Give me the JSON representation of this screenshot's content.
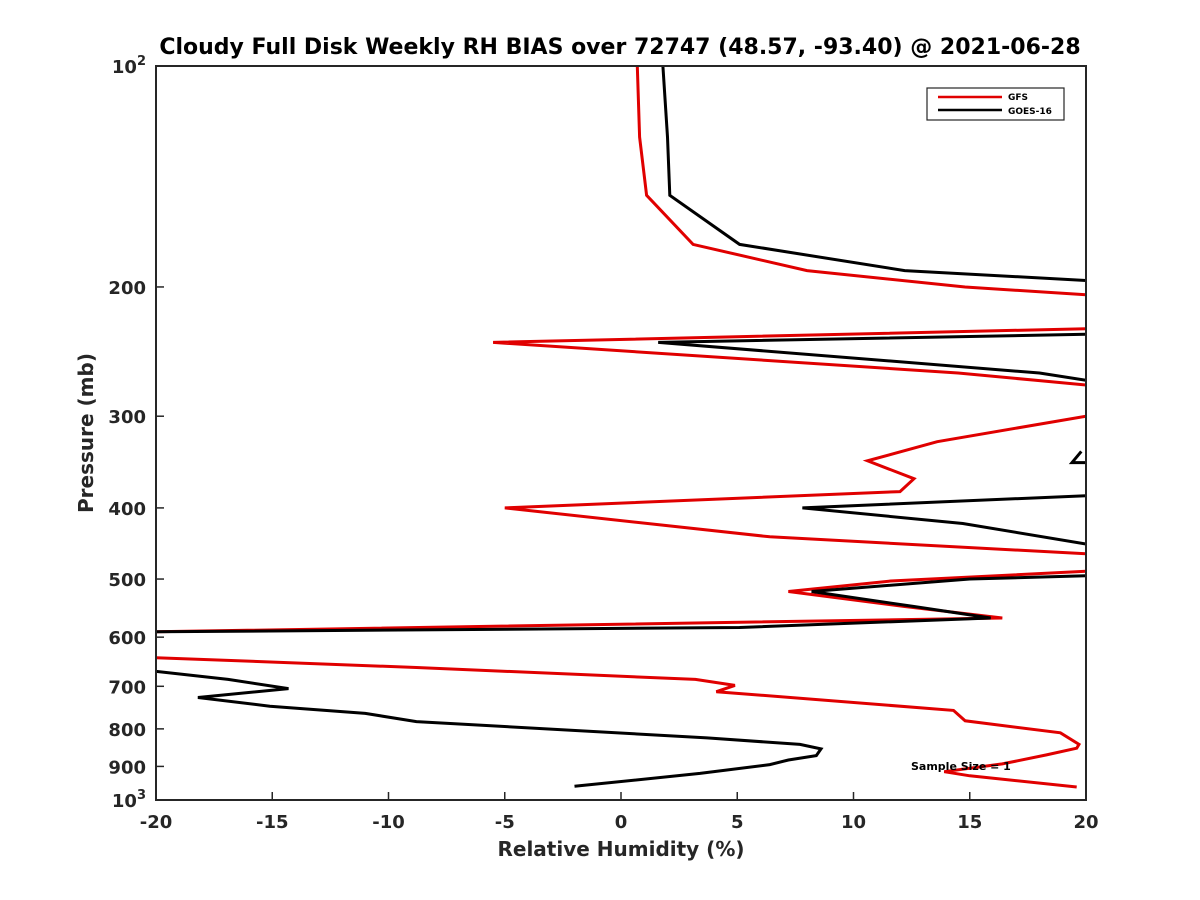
{
  "chart_data": {
    "type": "line",
    "title": "Cloudy Full Disk Weekly RH BIAS over 72747 (48.57, -93.40) @ 2021-06-28",
    "xlabel": "Relative Humidity (%)",
    "ylabel": "Pressure (mb)",
    "xlim": [
      -20,
      20
    ],
    "ylim": [
      100,
      1000
    ],
    "yscale": "log",
    "y_reversed": true,
    "grid": false,
    "x_ticks": [
      {
        "value": -20,
        "label": "-20"
      },
      {
        "value": -15,
        "label": "-15"
      },
      {
        "value": -10,
        "label": "-10"
      },
      {
        "value": -5,
        "label": "-5"
      },
      {
        "value": 0,
        "label": "0"
      },
      {
        "value": 5,
        "label": "5"
      },
      {
        "value": 10,
        "label": "10"
      },
      {
        "value": 15,
        "label": "15"
      },
      {
        "value": 20,
        "label": "20"
      }
    ],
    "y_ticks": [
      {
        "value": 100,
        "base": "10",
        "exp": "2"
      },
      {
        "value": 200,
        "base": "200",
        "exp": ""
      },
      {
        "value": 300,
        "base": "300",
        "exp": ""
      },
      {
        "value": 400,
        "base": "400",
        "exp": ""
      },
      {
        "value": 500,
        "base": "500",
        "exp": ""
      },
      {
        "value": 600,
        "base": "600",
        "exp": ""
      },
      {
        "value": 700,
        "base": "700",
        "exp": ""
      },
      {
        "value": 800,
        "base": "800",
        "exp": ""
      },
      {
        "value": 900,
        "base": "900",
        "exp": ""
      },
      {
        "value": 1000,
        "base": "10",
        "exp": "3"
      }
    ],
    "legend_position": "top-right",
    "annotation": "Sample Size = 1",
    "series": [
      {
        "name": "GFS",
        "color": "#e00000",
        "points": [
          [
            0.7,
            100
          ],
          [
            0.8,
            125
          ],
          [
            1.1,
            150
          ],
          [
            3.1,
            175
          ],
          [
            8,
            190
          ],
          [
            14.8,
            200
          ],
          [
            20,
            205
          ],
          [
            null,
            null
          ],
          [
            20,
            228
          ],
          [
            -5.5,
            238
          ],
          [
            14.5,
            262
          ],
          [
            20,
            272
          ],
          [
            null,
            null
          ],
          [
            20,
            300
          ],
          [
            13.6,
            325
          ],
          [
            10.6,
            345
          ],
          [
            12.6,
            365
          ],
          [
            12.0,
            380
          ],
          [
            -5.0,
            400
          ],
          [
            6.4,
            438
          ],
          [
            20,
            462
          ],
          [
            null,
            null
          ],
          [
            20,
            488
          ],
          [
            11.6,
            503
          ],
          [
            7.2,
            520
          ],
          [
            12.2,
            545
          ],
          [
            16.4,
            565
          ],
          [
            -20,
            590
          ],
          [
            null,
            null
          ],
          [
            -20,
            640
          ],
          [
            -8.8,
            660
          ],
          [
            3.2,
            685
          ],
          [
            4.9,
            698
          ],
          [
            4.1,
            712
          ],
          [
            14.3,
            755
          ],
          [
            14.8,
            780
          ],
          [
            18.9,
            810
          ],
          [
            19.7,
            840
          ],
          [
            19.6,
            850
          ],
          [
            18.3,
            868
          ],
          [
            16.4,
            893
          ],
          [
            13.9,
            915
          ],
          [
            15.0,
            927
          ],
          [
            19.6,
            960
          ]
        ]
      },
      {
        "name": "GOES-16",
        "color": "#000000",
        "points": [
          [
            1.8,
            100
          ],
          [
            2.0,
            125
          ],
          [
            2.1,
            150
          ],
          [
            5.1,
            175
          ],
          [
            12.2,
            190
          ],
          [
            20,
            196
          ],
          [
            null,
            null
          ],
          [
            20,
            232
          ],
          [
            1.6,
            238
          ],
          [
            18.0,
            262
          ],
          [
            20,
            268
          ],
          [
            null,
            null
          ],
          [
            19.8,
            335
          ],
          [
            19.4,
            347
          ],
          [
            20,
            347
          ],
          [
            null,
            null
          ],
          [
            20,
            385
          ],
          [
            7.8,
            400
          ],
          [
            14.7,
            420
          ],
          [
            20,
            448
          ],
          [
            null,
            null
          ],
          [
            20,
            495
          ],
          [
            15.0,
            500
          ],
          [
            8.2,
            520
          ],
          [
            12.6,
            545
          ],
          [
            15.9,
            565
          ],
          [
            5.1,
            582
          ],
          [
            -20,
            590
          ],
          [
            null,
            null
          ],
          [
            -20,
            668
          ],
          [
            -16.9,
            685
          ],
          [
            -14.3,
            705
          ],
          [
            -18.2,
            725
          ],
          [
            -15.1,
            745
          ],
          [
            -11.0,
            762
          ],
          [
            -8.8,
            782
          ],
          [
            3.7,
            823
          ],
          [
            7.7,
            840
          ],
          [
            8.6,
            852
          ],
          [
            8.4,
            870
          ],
          [
            7.2,
            882
          ],
          [
            6.4,
            895
          ],
          [
            3.4,
            920
          ],
          [
            -2,
            958
          ]
        ]
      }
    ]
  }
}
